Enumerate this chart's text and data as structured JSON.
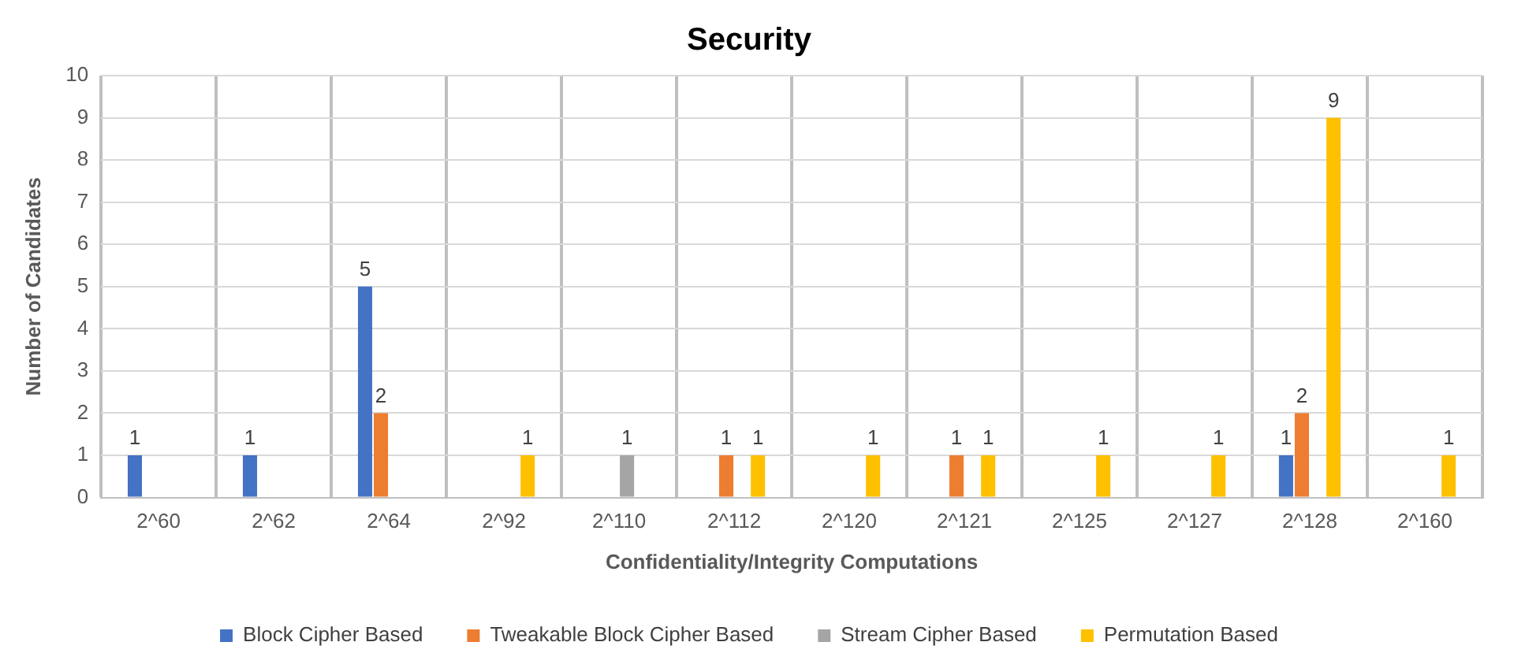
{
  "chart_data": {
    "type": "bar",
    "title": "Security",
    "xlabel": "Confidentiality/Integrity Computations",
    "ylabel": "Number of Candidates",
    "categories": [
      "2^60",
      "2^62",
      "2^64",
      "2^92",
      "2^110",
      "2^112",
      "2^120",
      "2^121",
      "2^125",
      "2^127",
      "2^128",
      "2^160"
    ],
    "series": [
      {
        "name": "Block Cipher Based",
        "color": "#4472c4",
        "values": [
          1,
          1,
          5,
          null,
          null,
          null,
          null,
          null,
          null,
          null,
          1,
          null
        ]
      },
      {
        "name": "Tweakable Block Cipher Based",
        "color": "#ed7d31",
        "values": [
          null,
          null,
          2,
          null,
          null,
          1,
          null,
          1,
          null,
          null,
          2,
          null
        ]
      },
      {
        "name": "Stream Cipher Based",
        "color": "#a5a5a5",
        "values": [
          null,
          null,
          null,
          null,
          1,
          null,
          null,
          null,
          null,
          null,
          null,
          null
        ]
      },
      {
        "name": "Permutation Based",
        "color": "#ffc000",
        "values": [
          null,
          null,
          null,
          1,
          null,
          1,
          1,
          1,
          1,
          1,
          9,
          1
        ]
      }
    ],
    "ylim": [
      0,
      10
    ],
    "yticks": [
      0,
      1,
      2,
      3,
      4,
      5,
      6,
      7,
      8,
      9,
      10
    ],
    "grid": true,
    "legend": "bottom",
    "data_labels": true
  }
}
